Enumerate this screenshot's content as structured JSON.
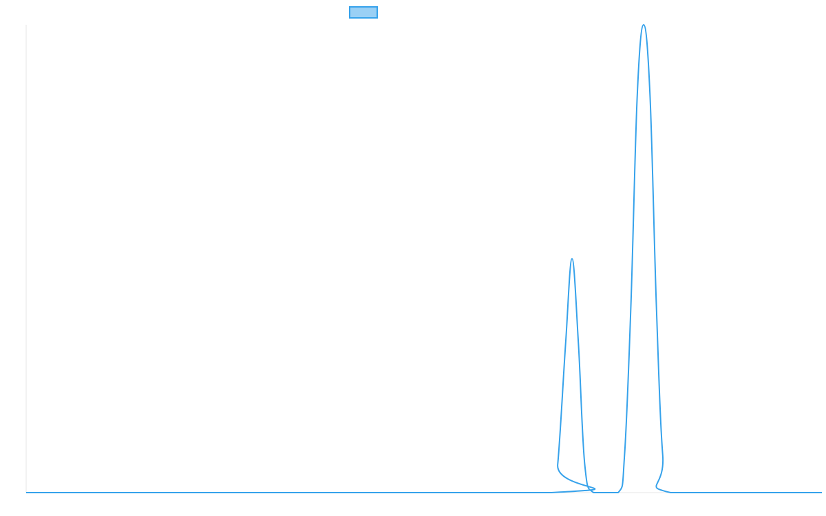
{
  "chart_data": {
    "type": "line",
    "title": "",
    "xlabel": "",
    "ylabel": "",
    "grid": false,
    "legend_placement": "top-center",
    "x_range": [
      0,
      1
    ],
    "ylim": [
      0,
      1
    ],
    "series": [
      {
        "color": "#36a2eb",
        "fill": "#9ad0f5",
        "x": [
          0.0,
          0.66,
          0.668,
          0.678,
          0.686,
          0.694,
          0.702,
          0.713,
          0.744,
          0.752,
          0.76,
          0.768,
          0.776,
          0.784,
          0.792,
          0.8,
          0.81,
          1.0
        ],
        "y": [
          0.0,
          0.0,
          0.06,
          0.32,
          0.5,
          0.32,
          0.06,
          0.0,
          0.0,
          0.08,
          0.4,
          0.85,
          1.0,
          0.85,
          0.4,
          0.08,
          0.0,
          0.0
        ]
      }
    ]
  },
  "colors": {
    "line": "#36a2eb",
    "legend_fill": "#9ad0f5",
    "axis": "#e6e6e6"
  }
}
